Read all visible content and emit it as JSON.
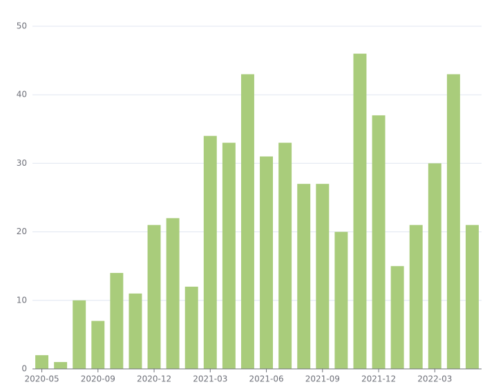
{
  "chart_data": {
    "type": "bar",
    "categories": [
      "2020-05",
      null,
      null,
      "2020-09",
      null,
      null,
      "2020-12",
      null,
      null,
      "2021-03",
      null,
      null,
      "2021-06",
      null,
      null,
      "2021-09",
      null,
      null,
      "2021-12",
      null,
      null,
      "2022-03",
      null,
      null
    ],
    "values": [
      2,
      1,
      10,
      7,
      14,
      11,
      21,
      22,
      12,
      34,
      33,
      43,
      31,
      33,
      27,
      27,
      20,
      46,
      37,
      15,
      21,
      30,
      43,
      21
    ],
    "color": "#a9cc7b",
    "ylim": [
      0,
      50
    ],
    "yticks": [
      0,
      10,
      20,
      30,
      40,
      50
    ],
    "grid": true
  }
}
